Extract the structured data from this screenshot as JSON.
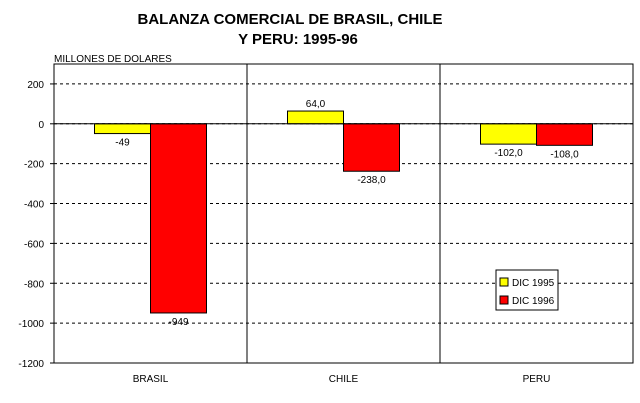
{
  "chart_data": {
    "type": "bar",
    "title_line1": "BALANZA COMERCIAL DE BRASIL, CHILE",
    "title_line2": "Y PERU: 1995-96",
    "ylabel": "MILLONES DE DOLARES",
    "xlabel": "",
    "categories": [
      "BRASIL",
      "CHILE",
      "PERU"
    ],
    "series": [
      {
        "name": "DIC 1995",
        "color": "#ffff00",
        "values": [
          -49,
          64.0,
          -102.0
        ],
        "labels": [
          "-49",
          "64,0",
          "-102,0"
        ]
      },
      {
        "name": "DIC 1996",
        "color": "#ff0000",
        "values": [
          -949,
          -238.0,
          -108.0
        ],
        "labels": [
          "-949",
          "-238,0",
          "-108,0"
        ]
      }
    ],
    "ylim": [
      -1200,
      300
    ],
    "yticks": [
      200,
      0,
      -200,
      -400,
      -600,
      -800,
      -1000,
      -1200
    ],
    "ytick_labels": [
      "200",
      "0",
      "-200",
      "-400",
      "-600",
      "-800",
      "-1000",
      "-1200"
    ],
    "grid": true,
    "legend_position": "bottom-right"
  }
}
